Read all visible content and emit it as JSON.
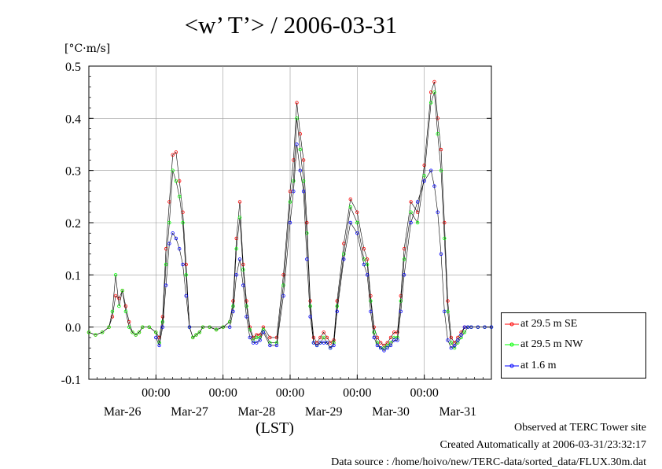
{
  "chart_data": {
    "type": "line",
    "title": "<w’ T’> / 2006-03-31",
    "unit_label": "[°C·m/s]",
    "xlabel": "(LST)",
    "ylim": [
      -0.1,
      0.5
    ],
    "yticks": [
      "-0.1",
      "0.0",
      "0.1",
      "0.2",
      "0.3",
      "0.4",
      "0.5"
    ],
    "xlim_days": [
      0,
      6
    ],
    "xticks": [
      {
        "day": 1,
        "time": "00:00",
        "date": "Mar-27"
      },
      {
        "day": 2,
        "time": "00:00",
        "date": "Mar-28"
      },
      {
        "day": 3,
        "time": "00:00",
        "date": "Mar-29"
      },
      {
        "day": 4,
        "time": "00:00",
        "date": "Mar-30"
      },
      {
        "day": 5,
        "time": "00:00",
        "date": "Mar-31"
      }
    ],
    "date_labels": [
      {
        "day": 0.5,
        "date": "Mar-26"
      },
      {
        "day": 1.5,
        "date": "Mar-27"
      },
      {
        "day": 2.5,
        "date": "Mar-28"
      },
      {
        "day": 3.5,
        "date": "Mar-29"
      },
      {
        "day": 4.5,
        "date": "Mar-30"
      },
      {
        "day": 5.5,
        "date": "Mar-31"
      }
    ],
    "grid": true,
    "legend_position": "lower-right, outside plot",
    "series": [
      {
        "name": "at 29.5 m SE",
        "color": "#ff0000",
        "x": [
          0.0,
          0.1,
          0.2,
          0.3,
          0.35,
          0.4,
          0.45,
          0.5,
          0.55,
          0.6,
          0.65,
          0.7,
          0.75,
          0.8,
          0.9,
          1.0,
          1.05,
          1.1,
          1.15,
          1.2,
          1.25,
          1.3,
          1.35,
          1.4,
          1.45,
          1.5,
          1.55,
          1.6,
          1.65,
          1.7,
          1.8,
          1.9,
          2.0,
          2.1,
          2.15,
          2.2,
          2.25,
          2.3,
          2.35,
          2.4,
          2.45,
          2.5,
          2.55,
          2.6,
          2.7,
          2.8,
          2.9,
          3.0,
          3.05,
          3.1,
          3.15,
          3.2,
          3.25,
          3.3,
          3.35,
          3.4,
          3.45,
          3.5,
          3.55,
          3.6,
          3.65,
          3.7,
          3.8,
          3.9,
          4.0,
          4.1,
          4.15,
          4.2,
          4.25,
          4.3,
          4.35,
          4.4,
          4.45,
          4.5,
          4.55,
          4.6,
          4.65,
          4.7,
          4.8,
          4.9,
          5.0,
          5.1,
          5.15,
          5.2,
          5.25,
          5.3,
          5.35,
          5.4,
          5.45,
          5.5,
          5.55,
          5.6,
          5.65,
          5.7,
          5.8,
          5.9,
          6.0
        ],
        "values": [
          -0.01,
          -0.015,
          -0.01,
          0.0,
          0.02,
          0.06,
          0.055,
          0.07,
          0.04,
          0.01,
          -0.01,
          -0.015,
          -0.01,
          0.0,
          0.0,
          -0.01,
          -0.02,
          0.02,
          0.15,
          0.24,
          0.33,
          0.335,
          0.28,
          0.22,
          0.12,
          0.0,
          -0.02,
          -0.015,
          -0.01,
          0.0,
          0.0,
          -0.005,
          0.0,
          0.01,
          0.05,
          0.17,
          0.24,
          0.12,
          0.05,
          0.0,
          -0.02,
          -0.015,
          -0.015,
          0.0,
          -0.02,
          -0.02,
          0.1,
          0.26,
          0.32,
          0.43,
          0.37,
          0.32,
          0.2,
          0.05,
          -0.02,
          -0.03,
          -0.02,
          -0.01,
          -0.02,
          -0.03,
          -0.025,
          0.05,
          0.16,
          0.245,
          0.22,
          0.15,
          0.13,
          0.06,
          0.0,
          -0.02,
          -0.03,
          -0.035,
          -0.03,
          -0.02,
          -0.01,
          -0.01,
          0.06,
          0.15,
          0.24,
          0.22,
          0.31,
          0.45,
          0.47,
          0.4,
          0.34,
          0.2,
          0.05,
          -0.02,
          -0.03,
          -0.02,
          -0.01,
          0.0,
          0.0,
          0.0,
          0.0,
          0.0,
          0.0
        ]
      },
      {
        "name": "at 29.5 m NW",
        "color": "#00ff00",
        "x": [
          0.0,
          0.1,
          0.2,
          0.3,
          0.35,
          0.4,
          0.45,
          0.5,
          0.55,
          0.6,
          0.65,
          0.7,
          0.75,
          0.8,
          0.9,
          1.0,
          1.05,
          1.1,
          1.15,
          1.2,
          1.25,
          1.3,
          1.35,
          1.4,
          1.45,
          1.5,
          1.55,
          1.6,
          1.65,
          1.7,
          1.8,
          1.9,
          2.0,
          2.1,
          2.15,
          2.2,
          2.25,
          2.3,
          2.35,
          2.4,
          2.45,
          2.5,
          2.55,
          2.6,
          2.7,
          2.8,
          2.9,
          3.0,
          3.05,
          3.1,
          3.15,
          3.2,
          3.25,
          3.3,
          3.35,
          3.4,
          3.45,
          3.5,
          3.55,
          3.6,
          3.65,
          3.7,
          3.8,
          3.9,
          4.0,
          4.1,
          4.15,
          4.2,
          4.25,
          4.3,
          4.35,
          4.4,
          4.45,
          4.5,
          4.55,
          4.6,
          4.65,
          4.7,
          4.8,
          4.9,
          5.0,
          5.1,
          5.15,
          5.2,
          5.25,
          5.3,
          5.35,
          5.4,
          5.45,
          5.5,
          5.55,
          5.6,
          5.65,
          5.7,
          5.8,
          5.9,
          6.0
        ],
        "values": [
          -0.01,
          -0.015,
          -0.01,
          0.0,
          0.03,
          0.1,
          0.04,
          0.07,
          0.03,
          0.0,
          -0.01,
          -0.015,
          -0.01,
          0.0,
          0.0,
          -0.01,
          -0.03,
          0.01,
          0.12,
          0.2,
          0.3,
          0.28,
          0.25,
          0.2,
          0.1,
          0.0,
          -0.02,
          -0.015,
          -0.01,
          0.0,
          0.0,
          -0.005,
          0.0,
          0.01,
          0.04,
          0.15,
          0.21,
          0.11,
          0.04,
          -0.005,
          -0.025,
          -0.02,
          -0.02,
          -0.005,
          -0.03,
          -0.03,
          0.08,
          0.24,
          0.28,
          0.4,
          0.34,
          0.28,
          0.18,
          0.04,
          -0.03,
          -0.035,
          -0.03,
          -0.02,
          -0.03,
          -0.04,
          -0.03,
          0.04,
          0.14,
          0.23,
          0.2,
          0.13,
          0.12,
          0.05,
          -0.01,
          -0.03,
          -0.04,
          -0.04,
          -0.035,
          -0.03,
          -0.02,
          -0.02,
          0.05,
          0.13,
          0.22,
          0.2,
          0.29,
          0.43,
          0.45,
          0.37,
          0.3,
          0.17,
          0.03,
          -0.03,
          -0.04,
          -0.03,
          -0.02,
          -0.01,
          0.0,
          0.0,
          0.0,
          0.0,
          0.0
        ]
      },
      {
        "name": "at 1.6 m",
        "color": "#0000ff",
        "x": [
          1.0,
          1.05,
          1.1,
          1.15,
          1.2,
          1.25,
          1.3,
          1.35,
          1.4,
          1.45,
          1.5,
          2.1,
          2.15,
          2.2,
          2.25,
          2.3,
          2.35,
          2.4,
          2.45,
          2.5,
          2.55,
          2.6,
          2.7,
          2.8,
          2.9,
          3.0,
          3.05,
          3.1,
          3.15,
          3.2,
          3.25,
          3.3,
          3.35,
          3.4,
          3.45,
          3.5,
          3.55,
          3.6,
          3.65,
          3.7,
          3.8,
          3.9,
          4.0,
          4.1,
          4.15,
          4.2,
          4.25,
          4.3,
          4.35,
          4.4,
          4.45,
          4.5,
          4.55,
          4.6,
          4.65,
          4.7,
          4.8,
          4.9,
          5.0,
          5.1,
          5.15,
          5.2,
          5.25,
          5.3,
          5.35,
          5.4,
          5.45,
          5.5,
          5.55,
          5.6,
          5.65,
          5.7,
          5.8,
          5.9,
          6.0
        ],
        "values": [
          -0.02,
          -0.035,
          0.0,
          0.08,
          0.16,
          0.18,
          0.17,
          0.15,
          0.12,
          0.06,
          0.0,
          0.0,
          0.03,
          0.1,
          0.13,
          0.08,
          0.02,
          -0.02,
          -0.03,
          -0.03,
          -0.025,
          -0.01,
          -0.035,
          -0.035,
          0.06,
          0.2,
          0.26,
          0.35,
          0.3,
          0.26,
          0.13,
          0.02,
          -0.03,
          -0.035,
          -0.03,
          -0.03,
          -0.03,
          -0.04,
          -0.035,
          0.03,
          0.13,
          0.2,
          0.18,
          0.12,
          0.1,
          0.03,
          -0.02,
          -0.035,
          -0.04,
          -0.045,
          -0.04,
          -0.035,
          -0.025,
          -0.025,
          0.03,
          0.1,
          0.2,
          0.24,
          0.28,
          0.3,
          0.27,
          0.22,
          0.14,
          0.03,
          -0.025,
          -0.04,
          -0.035,
          -0.025,
          -0.015,
          0.0,
          0.0,
          0.0,
          0.0,
          0.0,
          0.0
        ]
      }
    ]
  },
  "footer": {
    "line1": "Observed at TERC Tower site",
    "line2": "Created Automatically at 2006-03-31/23:32:17",
    "line3": "Data source : /home/hoivo/new/TERC-data/sorted_data/FLUX.30m.dat"
  }
}
